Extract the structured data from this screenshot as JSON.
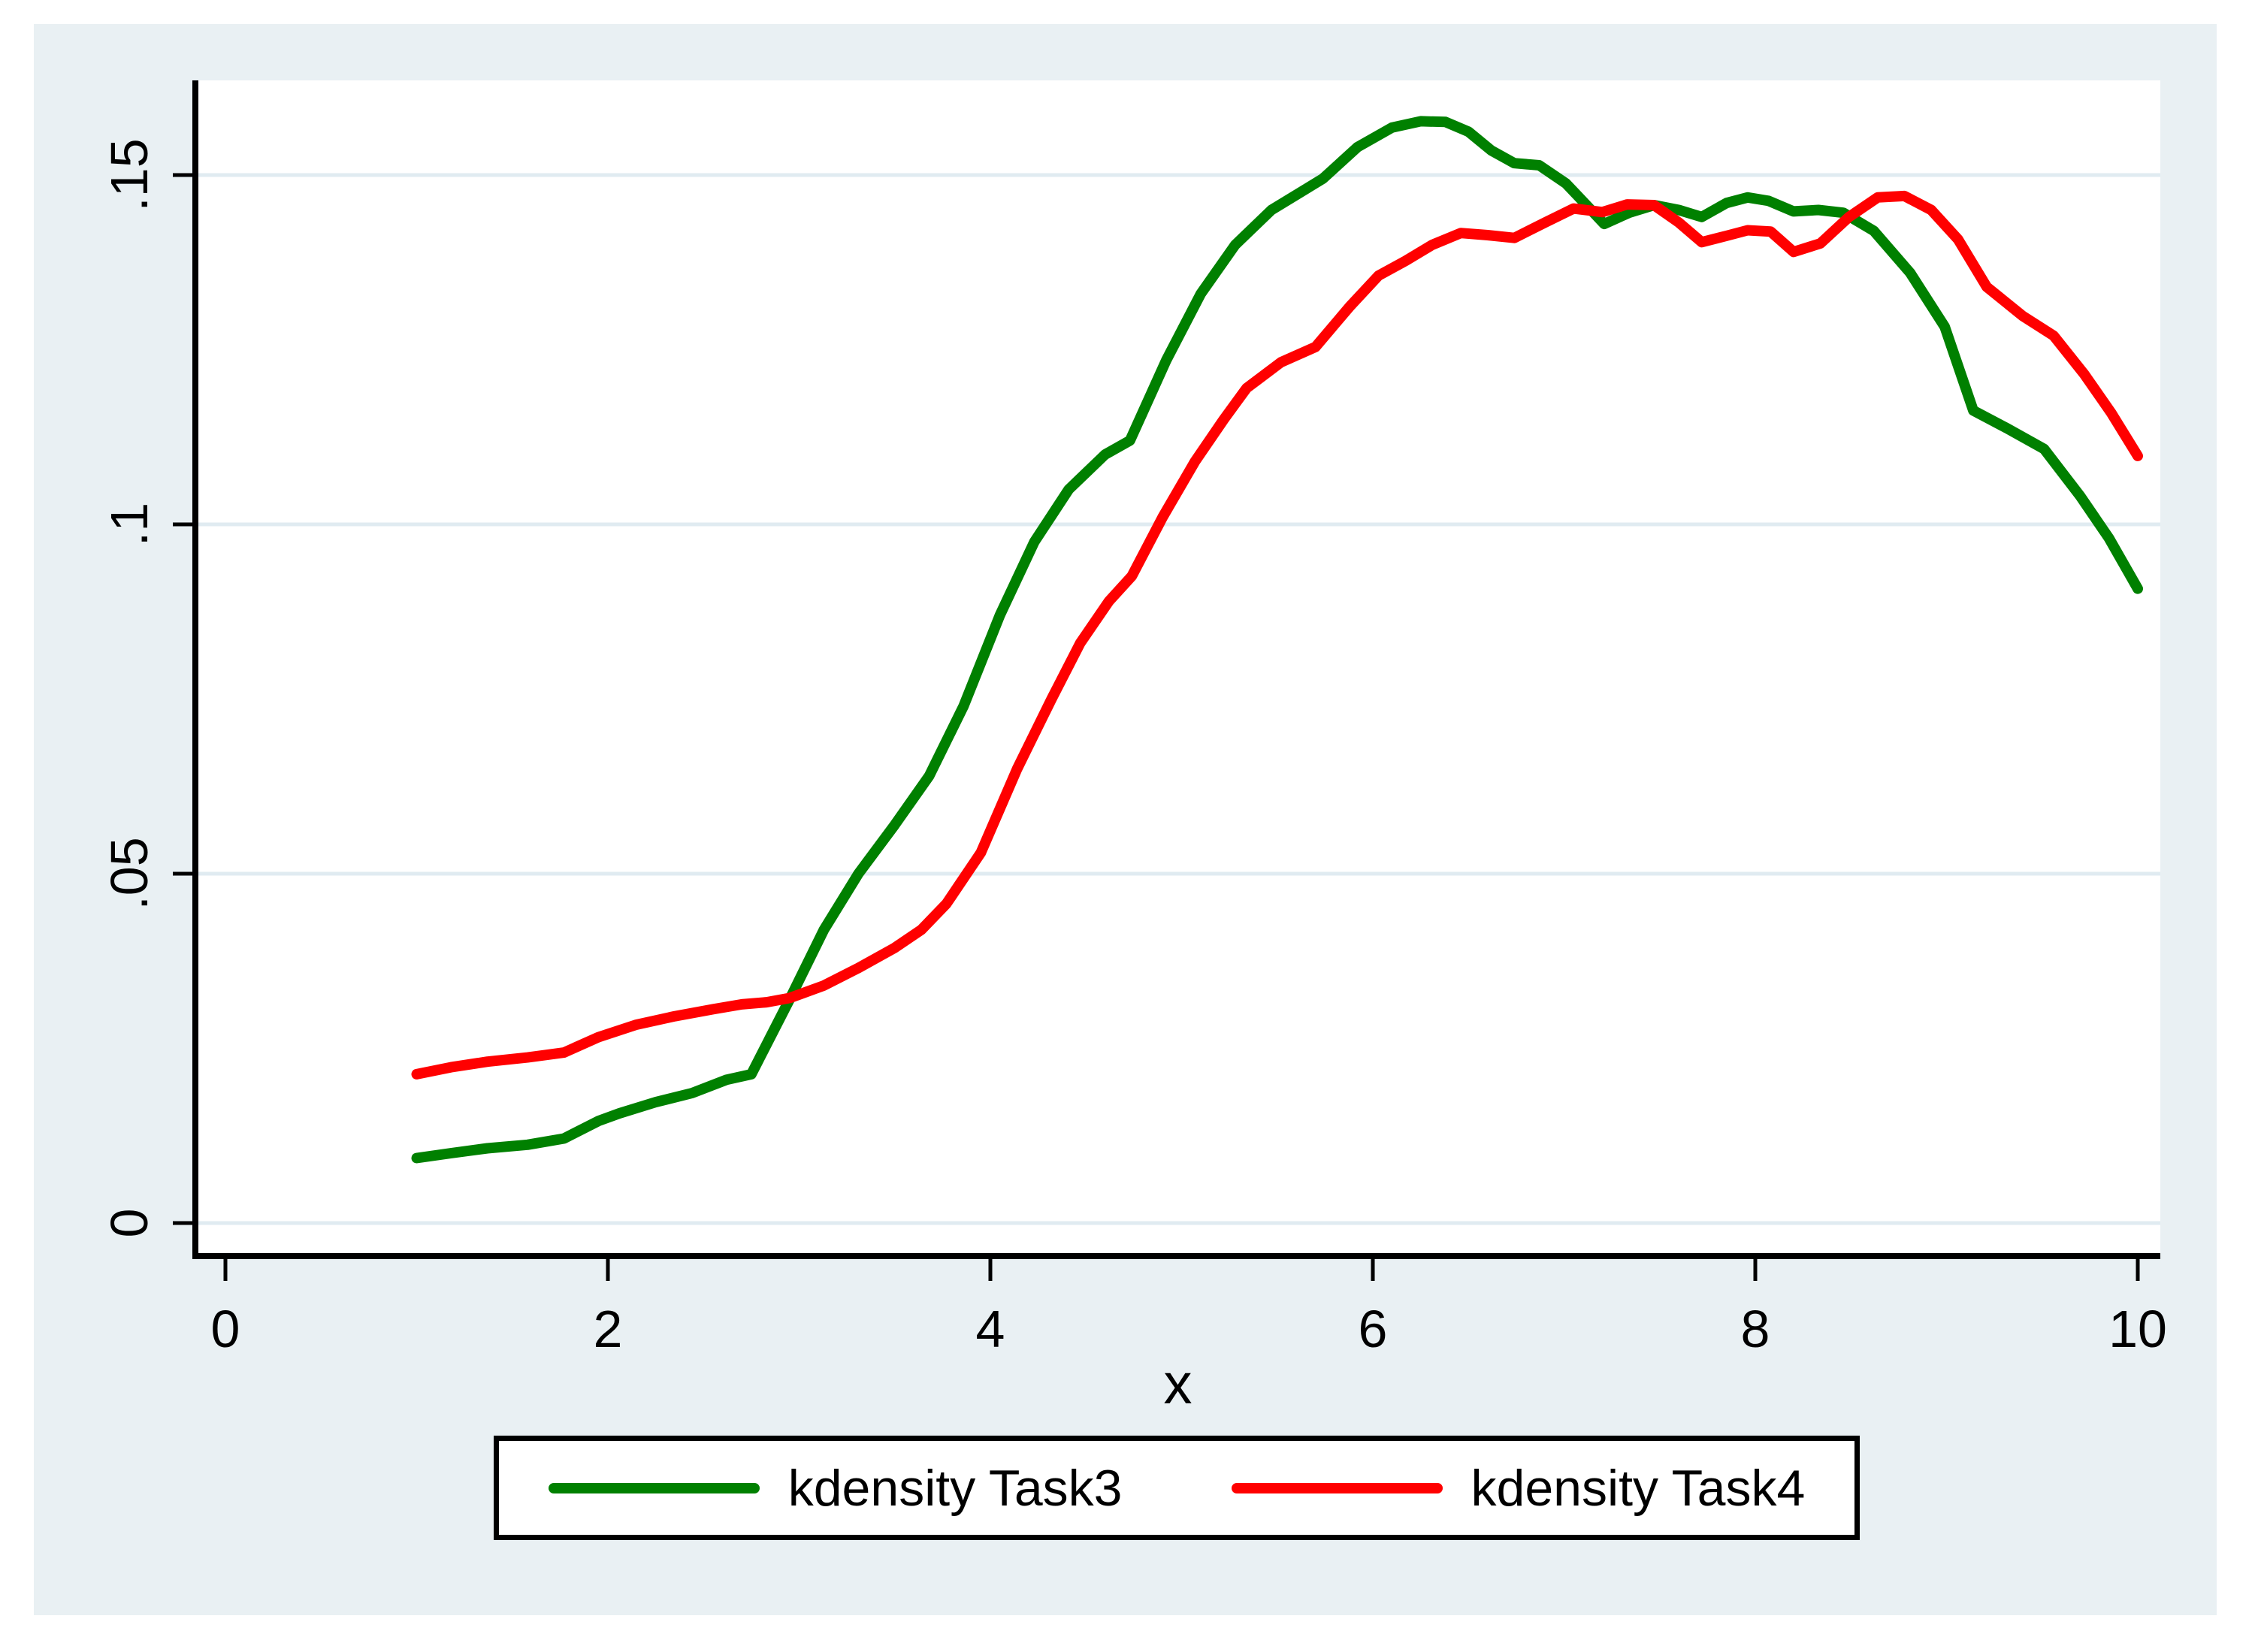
{
  "figure": {
    "background_color": "#e9f0f3",
    "plot_background_color": "#ffffff",
    "axis_color": "#000000",
    "gridline_color": "#e0ebf1"
  },
  "legend": {
    "items": [
      {
        "label": "kdensity Task3",
        "color": "#008000"
      },
      {
        "label": "kdensity Task4",
        "color": "#ff0000"
      }
    ]
  },
  "chart_data": {
    "type": "line",
    "title": "",
    "xlabel": "x",
    "ylabel": "",
    "xlim": [
      0,
      10
    ],
    "ylim": [
      0,
      0.163
    ],
    "grid": "horizontal",
    "legend_position": "bottom",
    "x_ticks": {
      "values": [
        0,
        2,
        4,
        6,
        8,
        10
      ],
      "labels": [
        "0",
        "2",
        "4",
        "6",
        "8",
        "10"
      ]
    },
    "y_ticks": {
      "values": [
        0,
        0.05,
        0.1,
        0.15
      ],
      "labels": [
        "0",
        ".05",
        ".1",
        ".15"
      ]
    },
    "series": [
      {
        "name": "kdensity Task3",
        "color": "#008000",
        "points": [
          [
            1.0,
            0.0093
          ],
          [
            1.18,
            0.01
          ],
          [
            1.37,
            0.0107
          ],
          [
            1.58,
            0.0112
          ],
          [
            1.77,
            0.0121
          ],
          [
            1.95,
            0.0146
          ],
          [
            2.06,
            0.0157
          ],
          [
            2.25,
            0.0173
          ],
          [
            2.44,
            0.0186
          ],
          [
            2.62,
            0.0205
          ],
          [
            2.75,
            0.0213
          ],
          [
            2.95,
            0.032
          ],
          [
            3.13,
            0.042
          ],
          [
            3.31,
            0.05
          ],
          [
            3.5,
            0.057
          ],
          [
            3.68,
            0.064
          ],
          [
            3.86,
            0.074
          ],
          [
            4.05,
            0.087
          ],
          [
            4.23,
            0.0975
          ],
          [
            4.41,
            0.105
          ],
          [
            4.6,
            0.11
          ],
          [
            4.73,
            0.112
          ],
          [
            4.92,
            0.1235
          ],
          [
            5.1,
            0.133
          ],
          [
            5.28,
            0.14
          ],
          [
            5.47,
            0.145
          ],
          [
            5.65,
            0.148
          ],
          [
            5.74,
            0.1495
          ],
          [
            5.92,
            0.154
          ],
          [
            6.1,
            0.1568
          ],
          [
            6.25,
            0.1577
          ],
          [
            6.38,
            0.1576
          ],
          [
            6.5,
            0.1562
          ],
          [
            6.62,
            0.1535
          ],
          [
            6.74,
            0.1517
          ],
          [
            6.87,
            0.1514
          ],
          [
            7.01,
            0.1488
          ],
          [
            7.1,
            0.1462
          ],
          [
            7.21,
            0.143
          ],
          [
            7.34,
            0.1446
          ],
          [
            7.47,
            0.1457
          ],
          [
            7.6,
            0.145
          ],
          [
            7.72,
            0.144
          ],
          [
            7.85,
            0.146
          ],
          [
            7.96,
            0.1468
          ],
          [
            8.07,
            0.1463
          ],
          [
            8.2,
            0.1448
          ],
          [
            8.33,
            0.145
          ],
          [
            8.46,
            0.1446
          ],
          [
            8.62,
            0.142
          ],
          [
            8.81,
            0.136
          ],
          [
            8.99,
            0.1283
          ],
          [
            9.14,
            0.1163
          ],
          [
            9.32,
            0.1137
          ],
          [
            9.51,
            0.1108
          ],
          [
            9.7,
            0.104
          ],
          [
            9.85,
            0.098
          ],
          [
            10.0,
            0.0908
          ]
        ]
      },
      {
        "name": "kdensity Task4",
        "color": "#ff0000",
        "points": [
          [
            1.0,
            0.0213
          ],
          [
            1.18,
            0.0223
          ],
          [
            1.37,
            0.0231
          ],
          [
            1.58,
            0.0237
          ],
          [
            1.77,
            0.0244
          ],
          [
            1.95,
            0.0266
          ],
          [
            2.15,
            0.0284
          ],
          [
            2.35,
            0.0296
          ],
          [
            2.55,
            0.0306
          ],
          [
            2.7,
            0.0313
          ],
          [
            2.83,
            0.0316
          ],
          [
            2.95,
            0.0322
          ],
          [
            3.13,
            0.034
          ],
          [
            3.31,
            0.0365
          ],
          [
            3.5,
            0.0394
          ],
          [
            3.64,
            0.042
          ],
          [
            3.77,
            0.0457
          ],
          [
            3.95,
            0.053
          ],
          [
            4.14,
            0.065
          ],
          [
            4.32,
            0.075
          ],
          [
            4.47,
            0.083
          ],
          [
            4.62,
            0.089
          ],
          [
            4.74,
            0.0926
          ],
          [
            4.9,
            0.101
          ],
          [
            5.07,
            0.109
          ],
          [
            5.22,
            0.115
          ],
          [
            5.34,
            0.1195
          ],
          [
            5.52,
            0.1232
          ],
          [
            5.7,
            0.1254
          ],
          [
            5.88,
            0.1312
          ],
          [
            6.03,
            0.1356
          ],
          [
            6.17,
            0.1377
          ],
          [
            6.31,
            0.14
          ],
          [
            6.46,
            0.1417
          ],
          [
            6.6,
            0.1414
          ],
          [
            6.74,
            0.141
          ],
          [
            6.9,
            0.1432
          ],
          [
            7.05,
            0.1452
          ],
          [
            7.2,
            0.1447
          ],
          [
            7.33,
            0.1458
          ],
          [
            7.47,
            0.1457
          ],
          [
            7.6,
            0.1432
          ],
          [
            7.72,
            0.1404
          ],
          [
            7.85,
            0.1413
          ],
          [
            7.96,
            0.1421
          ],
          [
            8.08,
            0.1419
          ],
          [
            8.2,
            0.139
          ],
          [
            8.34,
            0.1402
          ],
          [
            8.49,
            0.144
          ],
          [
            8.64,
            0.1468
          ],
          [
            8.78,
            0.147
          ],
          [
            8.92,
            0.145
          ],
          [
            9.06,
            0.1408
          ],
          [
            9.21,
            0.134
          ],
          [
            9.4,
            0.1298
          ],
          [
            9.56,
            0.127
          ],
          [
            9.72,
            0.1215
          ],
          [
            9.86,
            0.116
          ],
          [
            10.0,
            0.1098
          ]
        ]
      }
    ]
  }
}
